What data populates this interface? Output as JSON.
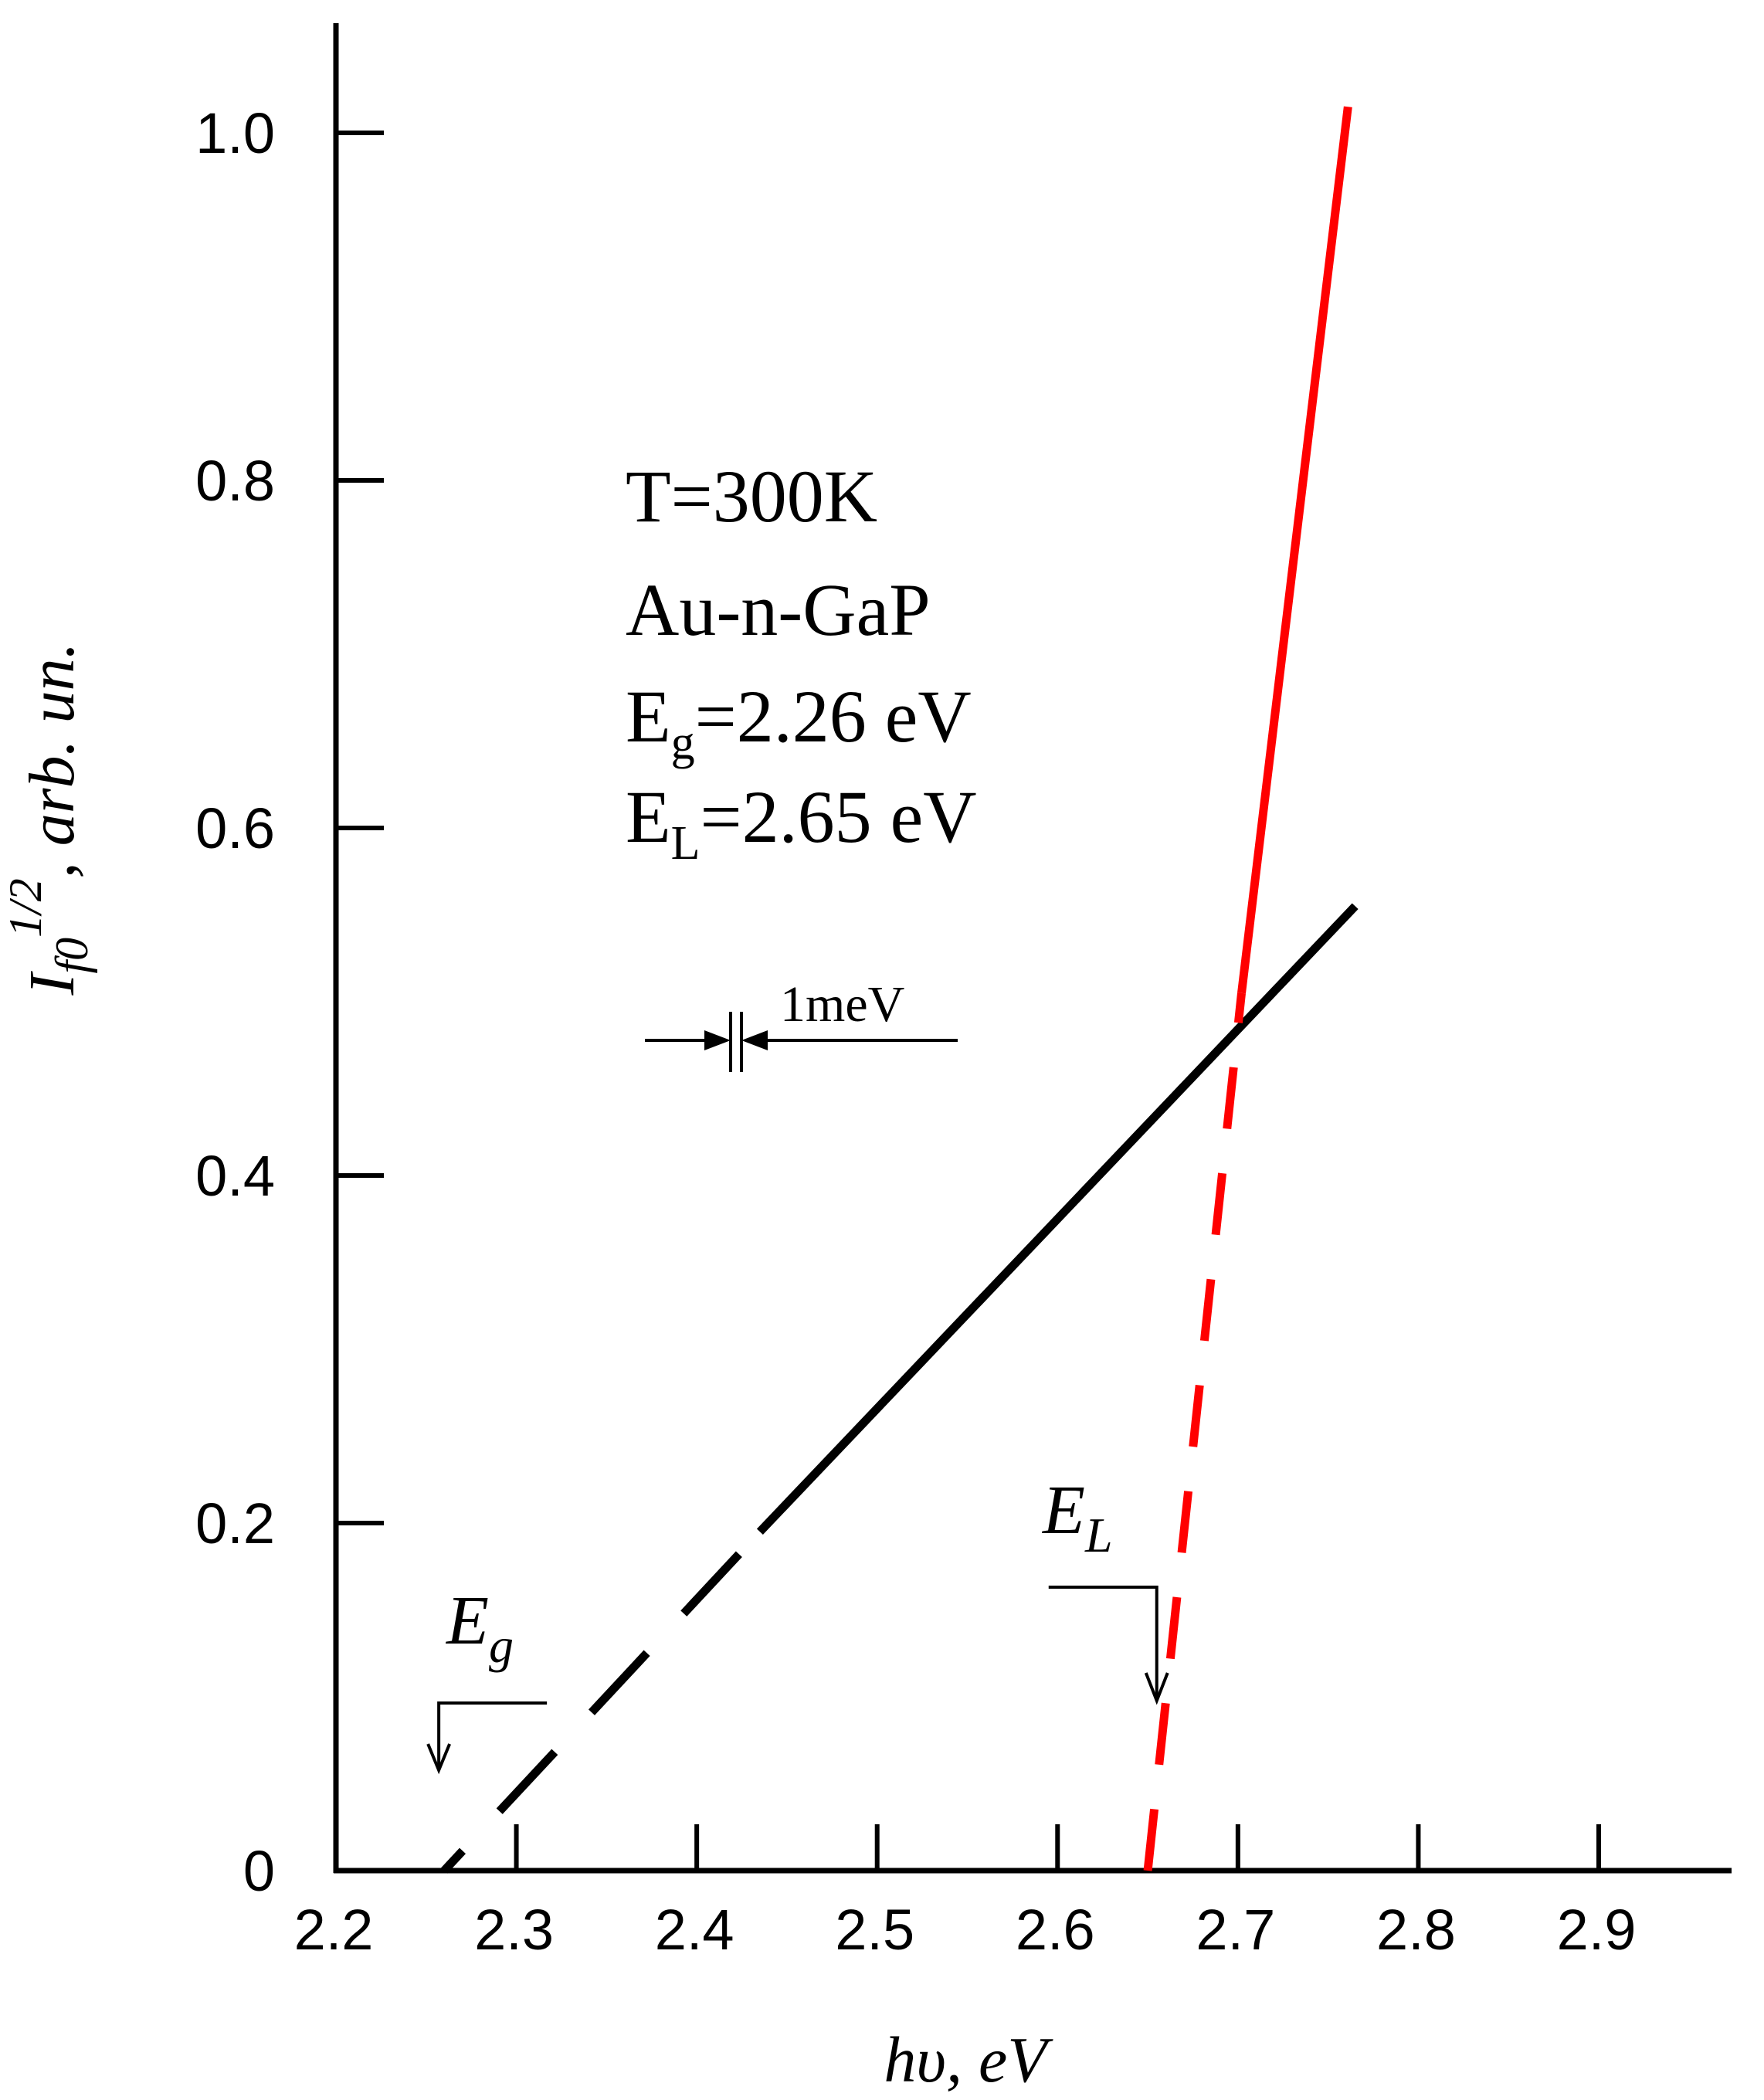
{
  "chart_data": {
    "type": "line",
    "title": "",
    "xlabel": {
      "main": "hυ, eV"
    },
    "ylabel": {
      "base": "I",
      "sub": "f0",
      "sup": "1/2",
      "rest": ", arb. un."
    },
    "xlim": [
      2.2,
      2.97
    ],
    "ylim": [
      0,
      1.05
    ],
    "x_ticks": [
      2.2,
      2.3,
      2.4,
      2.5,
      2.6,
      2.7,
      2.8,
      2.9
    ],
    "x_tick_labels": [
      "2.2",
      "2.3",
      "2.4",
      "2.5",
      "2.6",
      "2.7",
      "2.8",
      "2.9"
    ],
    "y_ticks": [
      0,
      0.2,
      0.4,
      0.6,
      0.8,
      1.0
    ],
    "y_tick_labels": [
      "0",
      "0.2",
      "0.4",
      "0.6",
      "0.8",
      "1.0"
    ],
    "grid": false,
    "series": [
      {
        "name": "Eg line",
        "color": "#000000",
        "segments": [
          {
            "style": "dashed",
            "x": [
              2.26,
              2.435
            ],
            "y": [
              0.0,
              0.195
            ]
          },
          {
            "style": "solid",
            "x": [
              2.435,
              2.765
            ],
            "y": [
              0.195,
              0.555
            ]
          }
        ]
      },
      {
        "name": "EL line",
        "color": "#ff0000",
        "segments": [
          {
            "style": "dashed",
            "x": [
              2.65,
              2.702
            ],
            "y": [
              0.0,
              0.505
            ]
          },
          {
            "style": "solid",
            "x": [
              2.702,
              2.761
            ],
            "y": [
              0.505,
              1.015
            ]
          }
        ]
      }
    ],
    "annotations": {
      "info_lines": [
        {
          "text": "T=300K"
        },
        {
          "text": "Au-n-GaP"
        },
        {
          "base": "E",
          "sub": "g",
          "rest": "=2.26 eV"
        },
        {
          "base": "E",
          "sub": "L",
          "rest": "=2.65 eV"
        }
      ],
      "resolution_label": "1meV",
      "eg_marker": {
        "base": "E",
        "sub": "g",
        "x": 2.257
      },
      "el_marker": {
        "base": "E",
        "sub": "L",
        "x": 2.655
      }
    }
  }
}
